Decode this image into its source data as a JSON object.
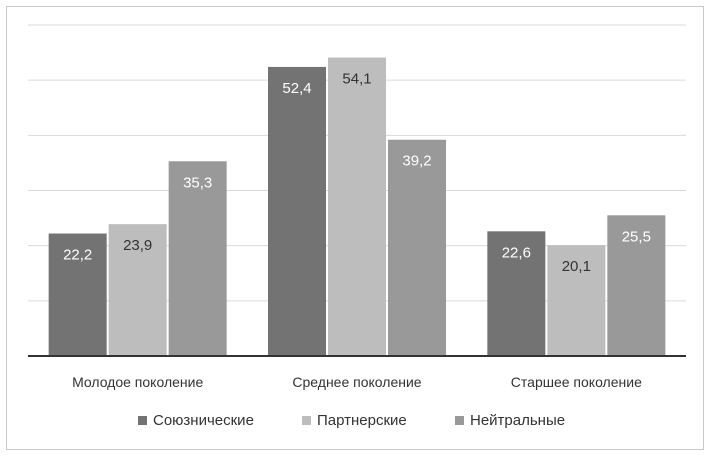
{
  "chart_data": {
    "type": "bar",
    "title": "",
    "xlabel": "",
    "ylabel": "",
    "categories": [
      "Молодое поколение",
      "Среднее поколение",
      "Старшее поколение"
    ],
    "series": [
      {
        "name": "Союзнические",
        "color": "#737373",
        "label_color": "#ffffff",
        "values": [
          22.2,
          52.4,
          22.6
        ]
      },
      {
        "name": "Партнерские",
        "color": "#bdbdbd",
        "label_color": "#333333",
        "values": [
          23.9,
          54.1,
          20.1
        ]
      },
      {
        "name": "Нейтральные",
        "color": "#999999",
        "label_color": "#ffffff",
        "values": [
          35.3,
          39.2,
          25.5
        ]
      }
    ],
    "data_labels": [
      [
        "22,2",
        "52,4",
        "22,6"
      ],
      [
        "23,9",
        "54,1",
        "20,1"
      ],
      [
        "35,3",
        "39,2",
        "25,5"
      ]
    ],
    "ylim": [
      0,
      60
    ],
    "grid": true,
    "gridline_step": 10,
    "legend_position": "bottom",
    "y_axis_labels_shown": false
  }
}
